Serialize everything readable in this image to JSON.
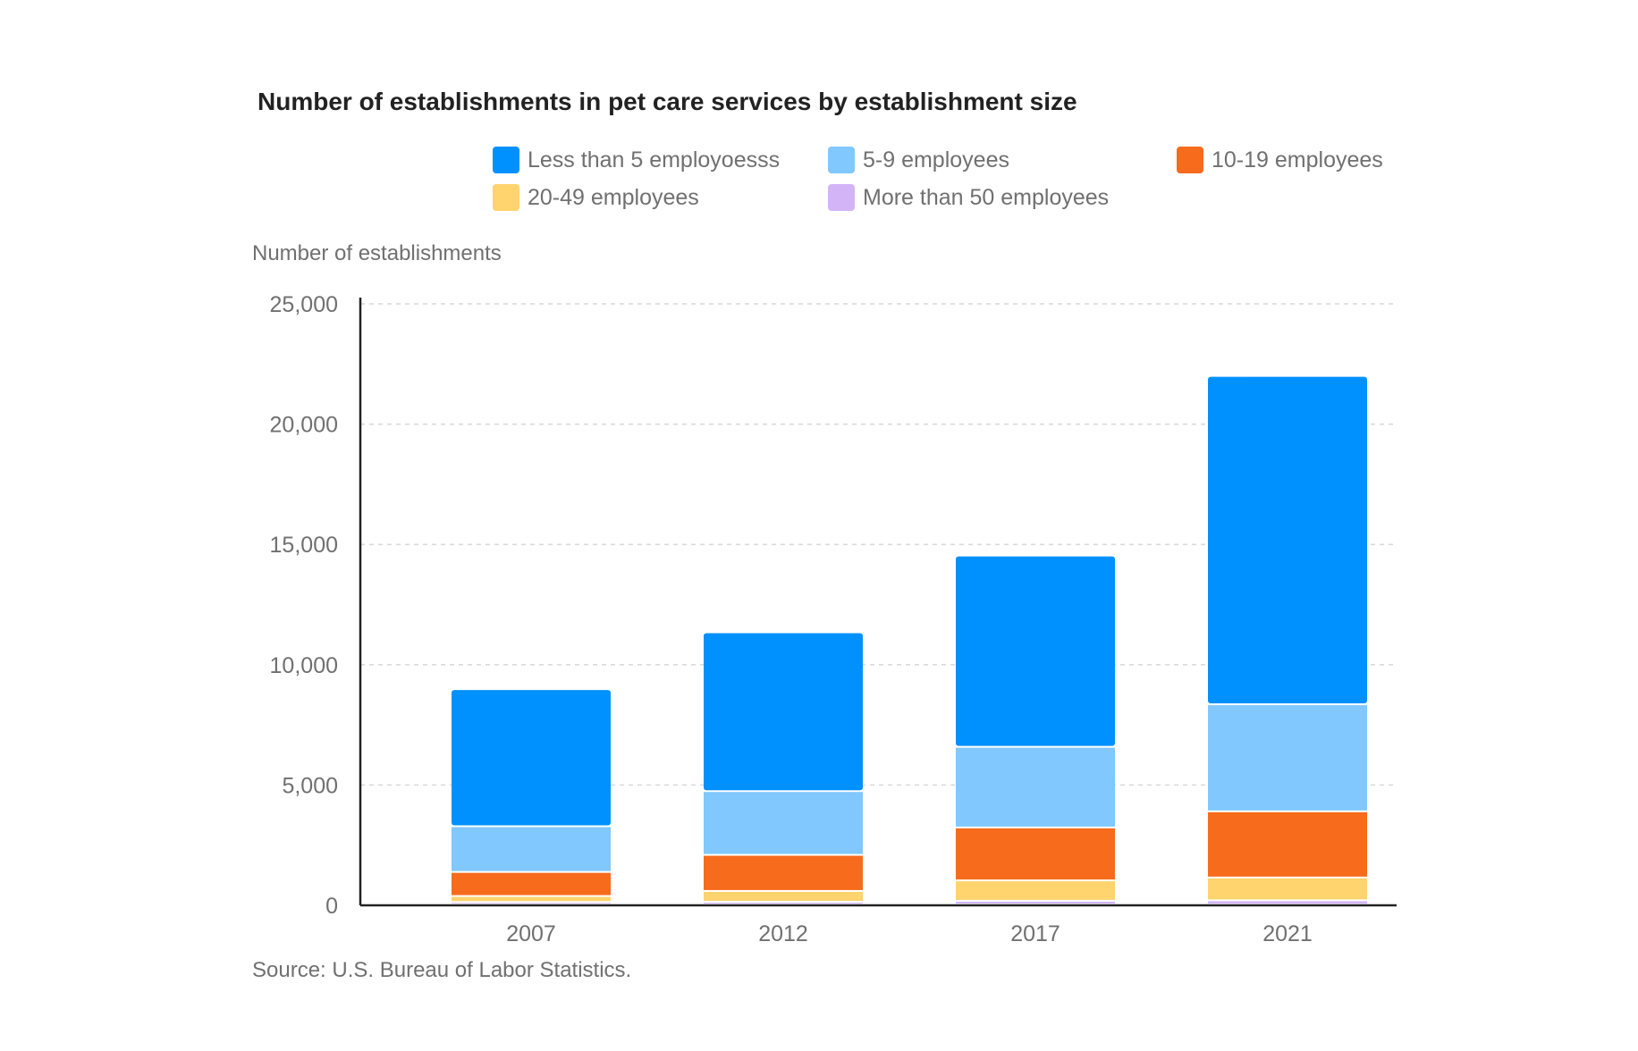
{
  "chart_data": {
    "type": "bar",
    "stacked": true,
    "title": "Number of establishments in pet care services by establishment size",
    "ylabel": "Number of establishments",
    "xlabel": "",
    "ylim": [
      0,
      25000
    ],
    "yticks": [
      0,
      5000,
      10000,
      15000,
      20000,
      25000
    ],
    "ytick_labels": [
      "0",
      "5,000",
      "10,000",
      "15,000",
      "20,000",
      "25,000"
    ],
    "categories": [
      "2007",
      "2012",
      "2017",
      "2021"
    ],
    "series": [
      {
        "name": "More than 50 employees",
        "color": "#d3b5f7",
        "values": [
          100,
          110,
          150,
          170
        ]
      },
      {
        "name": "20-49 employees",
        "color": "#ffd36e",
        "values": [
          250,
          450,
          850,
          950
        ]
      },
      {
        "name": "10-19 employees",
        "color": "#f76b1c",
        "values": [
          1000,
          1500,
          2200,
          2750
        ]
      },
      {
        "name": "5-9 employees",
        "color": "#80c8fe",
        "values": [
          1900,
          2650,
          3350,
          4450
        ]
      },
      {
        "name": "Less than 5 employoesss",
        "color": "#0191fe",
        "values": [
          5700,
          6600,
          7950,
          13650
        ]
      }
    ],
    "legend": {
      "placement": "top"
    },
    "grid": true,
    "source": "Source: U.S. Bureau of Labor Statistics."
  },
  "legend_items": [
    {
      "label": "Less than 5 employoesss",
      "color": "#0191fe"
    },
    {
      "label": "5-9 employees",
      "color": "#80c8fe"
    },
    {
      "label": "10-19 employees",
      "color": "#f76b1c"
    },
    {
      "label": "20-49 employees",
      "color": "#ffd36e"
    },
    {
      "label": "More than 50 employees",
      "color": "#d3b5f7"
    }
  ]
}
